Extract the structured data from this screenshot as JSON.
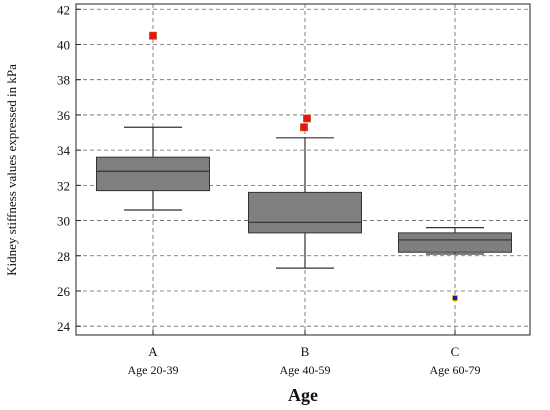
{
  "chart_data": {
    "type": "box",
    "xlabel": "Age",
    "ylabel": "Kidney stiffness values expressed in kPa",
    "ylim": [
      23.5,
      42.3
    ],
    "yticks": [
      24,
      26,
      28,
      30,
      32,
      34,
      36,
      38,
      40,
      42
    ],
    "grid": true,
    "box_color": "#7f7f7f",
    "whisker_color": "#333333",
    "series": [
      {
        "category": "A",
        "group_label": "Age 20-39",
        "whisker_low": 30.6,
        "q1": 31.7,
        "median": 32.8,
        "q3": 33.6,
        "whisker_high": 35.3,
        "outliers": [
          40.5
        ],
        "outlier_color": "#e8121b"
      },
      {
        "category": "B",
        "group_label": "Age 40-59",
        "whisker_low": 27.3,
        "q1": 29.3,
        "median": 29.9,
        "q3": 31.6,
        "whisker_high": 34.7,
        "outliers": [
          35.3,
          35.8
        ],
        "outlier_color": "#e8121b"
      },
      {
        "category": "C",
        "group_label": "Age 60-79",
        "whisker_low": 28.1,
        "q1": 28.2,
        "median": 28.9,
        "q3": 29.3,
        "whisker_high": 29.6,
        "outliers": [
          25.6
        ],
        "outlier_color": "#1a1aa6"
      }
    ]
  }
}
